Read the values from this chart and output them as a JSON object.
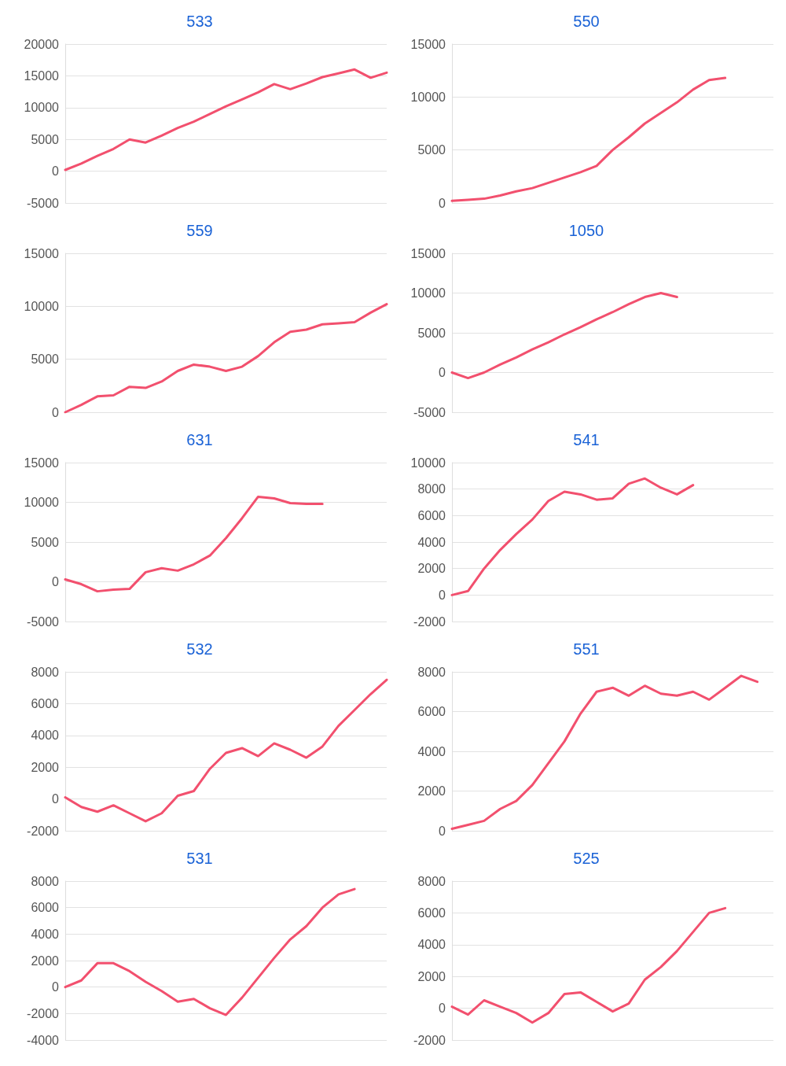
{
  "chart_data": [
    {
      "type": "line",
      "title": "533",
      "categories": [
        null,
        null,
        null,
        null,
        null,
        null,
        null,
        null,
        null,
        null,
        null,
        null,
        null,
        null,
        null,
        null,
        null,
        null,
        null,
        null,
        null
      ],
      "series": [
        {
          "color": "#f2506e",
          "values": [
            200,
            1200,
            2400,
            3500,
            5000,
            4500,
            5600,
            6800,
            7800,
            9000,
            10200,
            11300,
            12400,
            13700,
            12900,
            13800,
            14800,
            15400,
            16000,
            14700,
            15500
          ]
        }
      ],
      "ylim": [
        -5000,
        20000
      ],
      "yticks": [
        -5000,
        0,
        5000,
        10000,
        15000,
        20000
      ],
      "grid": "y",
      "marker": "none",
      "line_style": "solid",
      "tick_labels": "y"
    },
    {
      "type": "line",
      "title": "550",
      "categories": [
        null,
        null,
        null,
        null,
        null,
        null,
        null,
        null,
        null,
        null,
        null,
        null,
        null,
        null,
        null,
        null,
        null,
        null,
        null,
        null,
        null
      ],
      "series": [
        {
          "color": "#f2506e",
          "values": [
            200,
            300,
            400,
            700,
            1100,
            1400,
            1900,
            2400,
            2900,
            3500,
            5000,
            6200,
            7500,
            8500,
            9500,
            10700,
            11600,
            11800,
            null,
            null,
            null
          ]
        }
      ],
      "ylim": [
        0,
        15000
      ],
      "yticks": [
        0,
        5000,
        10000,
        15000
      ],
      "grid": "y",
      "marker": "none",
      "line_style": "solid",
      "tick_labels": "y"
    },
    {
      "type": "line",
      "title": "559",
      "categories": [
        null,
        null,
        null,
        null,
        null,
        null,
        null,
        null,
        null,
        null,
        null,
        null,
        null,
        null,
        null,
        null,
        null,
        null,
        null,
        null,
        null
      ],
      "series": [
        {
          "color": "#f2506e",
          "values": [
            0,
            700,
            1500,
            1600,
            2400,
            2300,
            2900,
            3900,
            4500,
            4300,
            3900,
            4300,
            5300,
            6600,
            7600,
            7800,
            8300,
            8400,
            8500,
            9400,
            10200
          ]
        }
      ],
      "ylim": [
        0,
        15000
      ],
      "yticks": [
        0,
        5000,
        10000,
        15000
      ],
      "grid": "y",
      "marker": "none",
      "line_style": "solid",
      "tick_labels": "y"
    },
    {
      "type": "line",
      "title": "1050",
      "categories": [
        null,
        null,
        null,
        null,
        null,
        null,
        null,
        null,
        null,
        null,
        null,
        null,
        null,
        null,
        null,
        null,
        null,
        null,
        null,
        null,
        null
      ],
      "series": [
        {
          "color": "#f2506e",
          "values": [
            0,
            -700,
            0,
            1000,
            1900,
            2900,
            3800,
            4800,
            5700,
            6700,
            7600,
            8600,
            9500,
            10000,
            9500,
            null,
            null,
            null,
            null,
            null,
            null
          ]
        }
      ],
      "ylim": [
        -5000,
        15000
      ],
      "yticks": [
        -5000,
        0,
        5000,
        10000,
        15000
      ],
      "grid": "y",
      "marker": "none",
      "line_style": "solid",
      "tick_labels": "y"
    },
    {
      "type": "line",
      "title": "631",
      "categories": [
        null,
        null,
        null,
        null,
        null,
        null,
        null,
        null,
        null,
        null,
        null,
        null,
        null,
        null,
        null,
        null,
        null,
        null,
        null,
        null,
        null
      ],
      "series": [
        {
          "color": "#f2506e",
          "values": [
            300,
            -300,
            -1200,
            -1000,
            -900,
            1200,
            1700,
            1400,
            2200,
            3300,
            5500,
            8000,
            10700,
            10500,
            9900,
            9800,
            9800,
            null,
            null,
            null,
            null
          ]
        }
      ],
      "ylim": [
        -5000,
        15000
      ],
      "yticks": [
        -5000,
        0,
        5000,
        10000,
        15000
      ],
      "grid": "y",
      "marker": "none",
      "line_style": "solid",
      "tick_labels": "y"
    },
    {
      "type": "line",
      "title": "541",
      "categories": [
        null,
        null,
        null,
        null,
        null,
        null,
        null,
        null,
        null,
        null,
        null,
        null,
        null,
        null,
        null,
        null,
        null,
        null,
        null,
        null,
        null
      ],
      "series": [
        {
          "color": "#f2506e",
          "values": [
            0,
            300,
            2000,
            3400,
            4600,
            5700,
            7100,
            7800,
            7600,
            7200,
            7300,
            8400,
            8800,
            8100,
            7600,
            8300,
            null,
            null,
            null,
            null,
            null
          ]
        }
      ],
      "ylim": [
        -2000,
        10000
      ],
      "yticks": [
        -2000,
        0,
        2000,
        4000,
        6000,
        8000,
        10000
      ],
      "grid": "y",
      "marker": "none",
      "line_style": "solid",
      "tick_labels": "y"
    },
    {
      "type": "line",
      "title": "532",
      "categories": [
        null,
        null,
        null,
        null,
        null,
        null,
        null,
        null,
        null,
        null,
        null,
        null,
        null,
        null,
        null,
        null,
        null,
        null,
        null,
        null,
        null
      ],
      "series": [
        {
          "color": "#f2506e",
          "values": [
            100,
            -500,
            -800,
            -400,
            -900,
            -1400,
            -900,
            200,
            500,
            1900,
            2900,
            3200,
            2700,
            3500,
            3100,
            2600,
            3300,
            4600,
            5600,
            6600,
            7500
          ]
        }
      ],
      "ylim": [
        -2000,
        8000
      ],
      "yticks": [
        -2000,
        0,
        2000,
        4000,
        6000,
        8000
      ],
      "grid": "y",
      "marker": "none",
      "line_style": "solid",
      "tick_labels": "y"
    },
    {
      "type": "line",
      "title": "551",
      "categories": [
        null,
        null,
        null,
        null,
        null,
        null,
        null,
        null,
        null,
        null,
        null,
        null,
        null,
        null,
        null,
        null,
        null,
        null,
        null,
        null,
        null
      ],
      "series": [
        {
          "color": "#f2506e",
          "values": [
            100,
            300,
            500,
            1100,
            1500,
            2300,
            3400,
            4500,
            5900,
            7000,
            7200,
            6800,
            7300,
            6900,
            6800,
            7000,
            6600,
            7200,
            7800,
            7500,
            null
          ]
        }
      ],
      "ylim": [
        0,
        8000
      ],
      "yticks": [
        0,
        2000,
        4000,
        6000,
        8000
      ],
      "grid": "y",
      "marker": "none",
      "line_style": "solid",
      "tick_labels": "y"
    },
    {
      "type": "line",
      "title": "531",
      "categories": [
        null,
        null,
        null,
        null,
        null,
        null,
        null,
        null,
        null,
        null,
        null,
        null,
        null,
        null,
        null,
        null,
        null,
        null,
        null,
        null,
        null
      ],
      "series": [
        {
          "color": "#f2506e",
          "values": [
            0,
            500,
            1800,
            1800,
            1200,
            400,
            -300,
            -1100,
            -900,
            -1600,
            -2100,
            -800,
            700,
            2200,
            3600,
            4600,
            6000,
            7000,
            7400,
            null,
            null
          ]
        }
      ],
      "ylim": [
        -4000,
        8000
      ],
      "yticks": [
        -4000,
        -2000,
        0,
        2000,
        4000,
        6000,
        8000
      ],
      "grid": "y",
      "marker": "none",
      "line_style": "solid",
      "tick_labels": "y"
    },
    {
      "type": "line",
      "title": "525",
      "categories": [
        null,
        null,
        null,
        null,
        null,
        null,
        null,
        null,
        null,
        null,
        null,
        null,
        null,
        null,
        null,
        null,
        null,
        null,
        null,
        null,
        null
      ],
      "series": [
        {
          "color": "#f2506e",
          "values": [
            100,
            -400,
            500,
            100,
            -300,
            -900,
            -300,
            900,
            1000,
            400,
            -200,
            300,
            1800,
            2600,
            3600,
            4800,
            6000,
            6300,
            null,
            null,
            null
          ]
        }
      ],
      "ylim": [
        -2000,
        8000
      ],
      "yticks": [
        -2000,
        0,
        2000,
        4000,
        6000,
        8000
      ],
      "grid": "y",
      "marker": "none",
      "line_style": "solid",
      "tick_labels": "y"
    }
  ]
}
